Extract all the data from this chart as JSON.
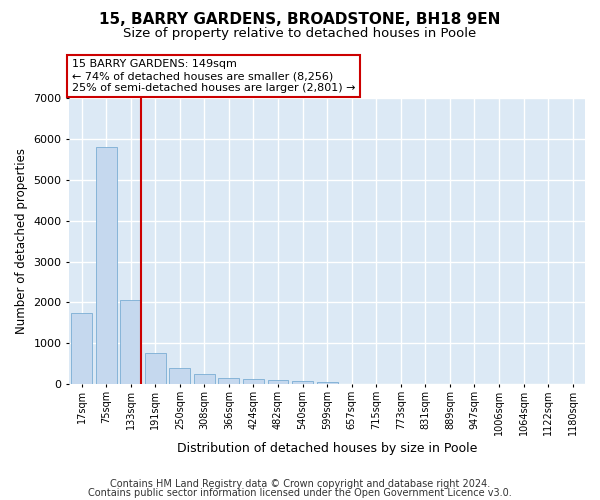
{
  "title1": "15, BARRY GARDENS, BROADSTONE, BH18 9EN",
  "title2": "Size of property relative to detached houses in Poole",
  "xlabel": "Distribution of detached houses by size in Poole",
  "ylabel": "Number of detached properties",
  "categories": [
    "17sqm",
    "75sqm",
    "133sqm",
    "191sqm",
    "250sqm",
    "308sqm",
    "366sqm",
    "424sqm",
    "482sqm",
    "540sqm",
    "599sqm",
    "657sqm",
    "715sqm",
    "773sqm",
    "831sqm",
    "889sqm",
    "947sqm",
    "1006sqm",
    "1064sqm",
    "1122sqm",
    "1180sqm"
  ],
  "values": [
    1750,
    5800,
    2050,
    750,
    400,
    250,
    150,
    120,
    100,
    80,
    60,
    0,
    0,
    0,
    0,
    0,
    0,
    0,
    0,
    0,
    0
  ],
  "bar_color": "#c5d8ee",
  "bar_edge_color": "#7aadd4",
  "ylim": [
    0,
    7000
  ],
  "yticks": [
    0,
    1000,
    2000,
    3000,
    4000,
    5000,
    6000,
    7000
  ],
  "annotation_line1": "15 BARRY GARDENS: 149sqm",
  "annotation_line2": "← 74% of detached houses are smaller (8,256)",
  "annotation_line3": "25% of semi-detached houses are larger (2,801) →",
  "vline_color": "#cc0000",
  "box_edge_color": "#cc0000",
  "footer1": "Contains HM Land Registry data © Crown copyright and database right 2024.",
  "footer2": "Contains public sector information licensed under the Open Government Licence v3.0.",
  "plot_bg_color": "#dce9f5",
  "grid_color": "#ffffff",
  "title1_fontsize": 11,
  "title2_fontsize": 9.5,
  "annotation_fontsize": 8,
  "footer_fontsize": 7,
  "ylabel_fontsize": 8.5,
  "xlabel_fontsize": 9
}
